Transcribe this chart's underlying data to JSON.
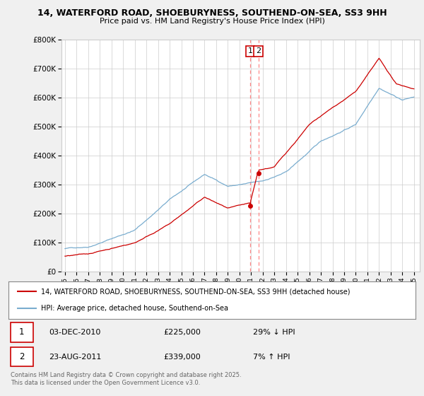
{
  "title1": "14, WATERFORD ROAD, SHOEBURYNESS, SOUTHEND-ON-SEA, SS3 9HH",
  "title2": "Price paid vs. HM Land Registry's House Price Index (HPI)",
  "ylim": [
    0,
    800000
  ],
  "yticks": [
    0,
    100000,
    200000,
    300000,
    400000,
    500000,
    600000,
    700000,
    800000
  ],
  "ytick_labels": [
    "£0",
    "£100K",
    "£200K",
    "£300K",
    "£400K",
    "£500K",
    "£600K",
    "£700K",
    "£800K"
  ],
  "line1_color": "#cc0000",
  "line2_color": "#7aadcf",
  "vline_color": "#ff8888",
  "purchase1_year": 2010.92,
  "purchase2_year": 2011.64,
  "purchase1_date": "03-DEC-2010",
  "purchase1_price": 225000,
  "purchase1_hpi": "29% ↓ HPI",
  "purchase2_date": "23-AUG-2011",
  "purchase2_price": 339000,
  "purchase2_hpi": "7% ↑ HPI",
  "legend1": "14, WATERFORD ROAD, SHOEBURYNESS, SOUTHEND-ON-SEA, SS3 9HH (detached house)",
  "legend2": "HPI: Average price, detached house, Southend-on-Sea",
  "footnote": "Contains HM Land Registry data © Crown copyright and database right 2025.\nThis data is licensed under the Open Government Licence v3.0.",
  "bg_color": "#f0f0f0",
  "plot_bg_color": "#ffffff",
  "grid_color": "#cccccc"
}
